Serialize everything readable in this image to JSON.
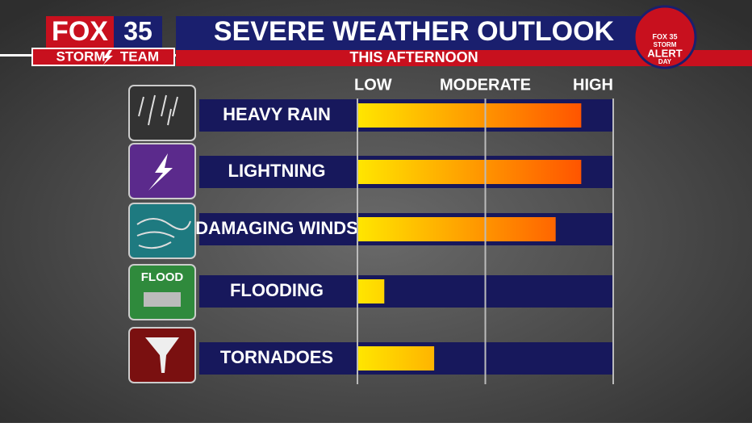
{
  "branding": {
    "fox": "FOX",
    "number": "35",
    "storm": "STORM",
    "team": "TEAM",
    "badge": {
      "station": "FOX 35",
      "line1": "STORM",
      "line2": "ALERT",
      "line3": "DAY"
    }
  },
  "icons": {
    "flood": "FLOOD"
  },
  "chart_data": {
    "type": "hbar",
    "title": "SEVERE WEATHER OUTLOOK",
    "subtitle": "THIS AFTERNOON",
    "categories": [
      "HEAVY RAIN",
      "LIGHTNING",
      "DAMAGING WINDS",
      "FLOODING",
      "TORNADOES"
    ],
    "values": [
      1.75,
      1.75,
      1.55,
      0.21,
      0.6
    ],
    "colors": [
      "#ffe600",
      "#ff4000"
    ],
    "xlim": [
      0,
      2
    ],
    "xticks": [
      {
        "value": 0,
        "label": "LOW"
      },
      {
        "value": 1,
        "label": "MODERATE"
      },
      {
        "value": 2,
        "label": "HIGH"
      }
    ],
    "grid": true
  }
}
